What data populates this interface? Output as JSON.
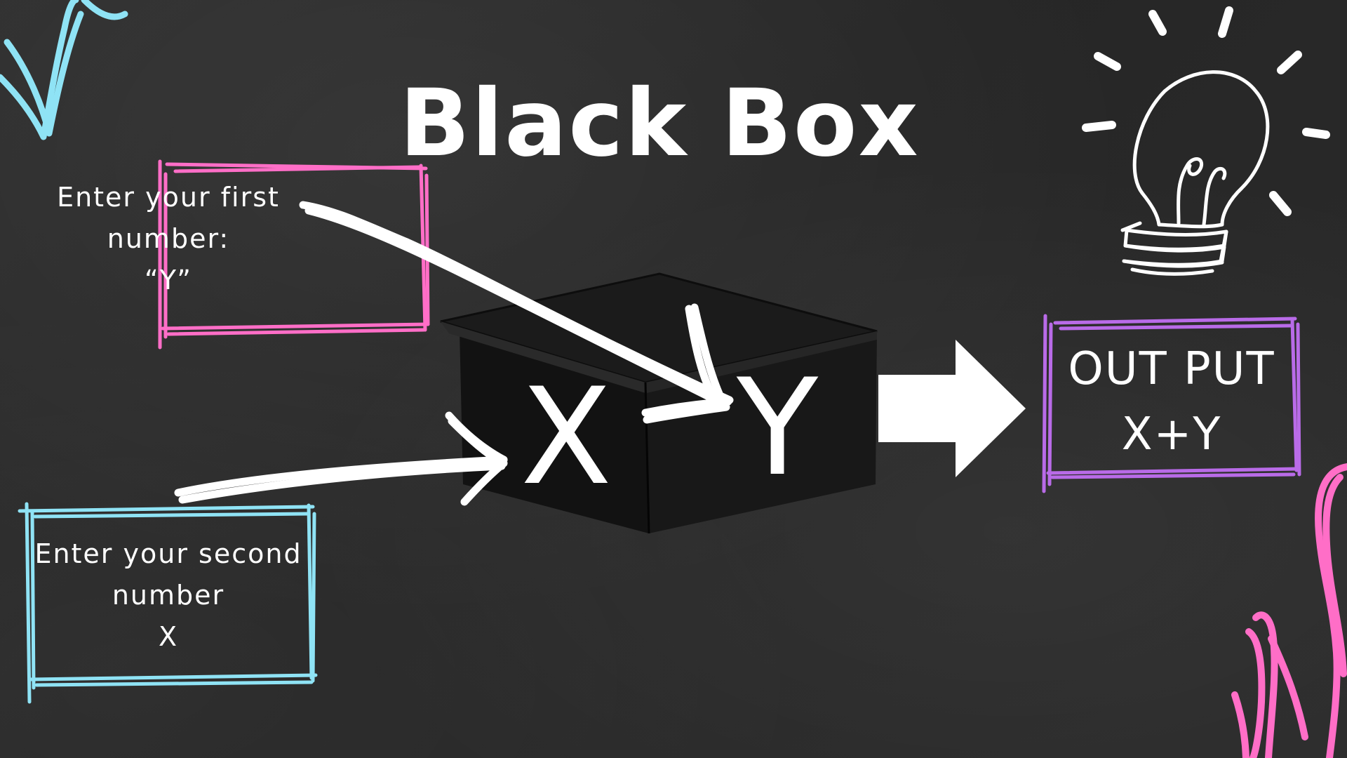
{
  "title": "Black Box",
  "input_first": {
    "line1": "Enter your first",
    "line2": "number:",
    "line3": "“Y”"
  },
  "input_second": {
    "line1": "Enter your second",
    "line2": "number",
    "line3": "X"
  },
  "box": {
    "label_x": "X",
    "label_y": "Y"
  },
  "output": {
    "line1": "OUT PUT",
    "line2": "X+Y"
  },
  "colors": {
    "background": "#2a2a2a",
    "chalk_white": "#ffffff",
    "first_box_border": "#ff6ec7",
    "second_box_border": "#8fe3f5",
    "output_box_border": "#b96be8",
    "scribble_cyan": "#8fe3f5",
    "scribble_pink": "#ff6ec7"
  },
  "icons": [
    "lightbulb-icon",
    "arrow-right-icon"
  ]
}
